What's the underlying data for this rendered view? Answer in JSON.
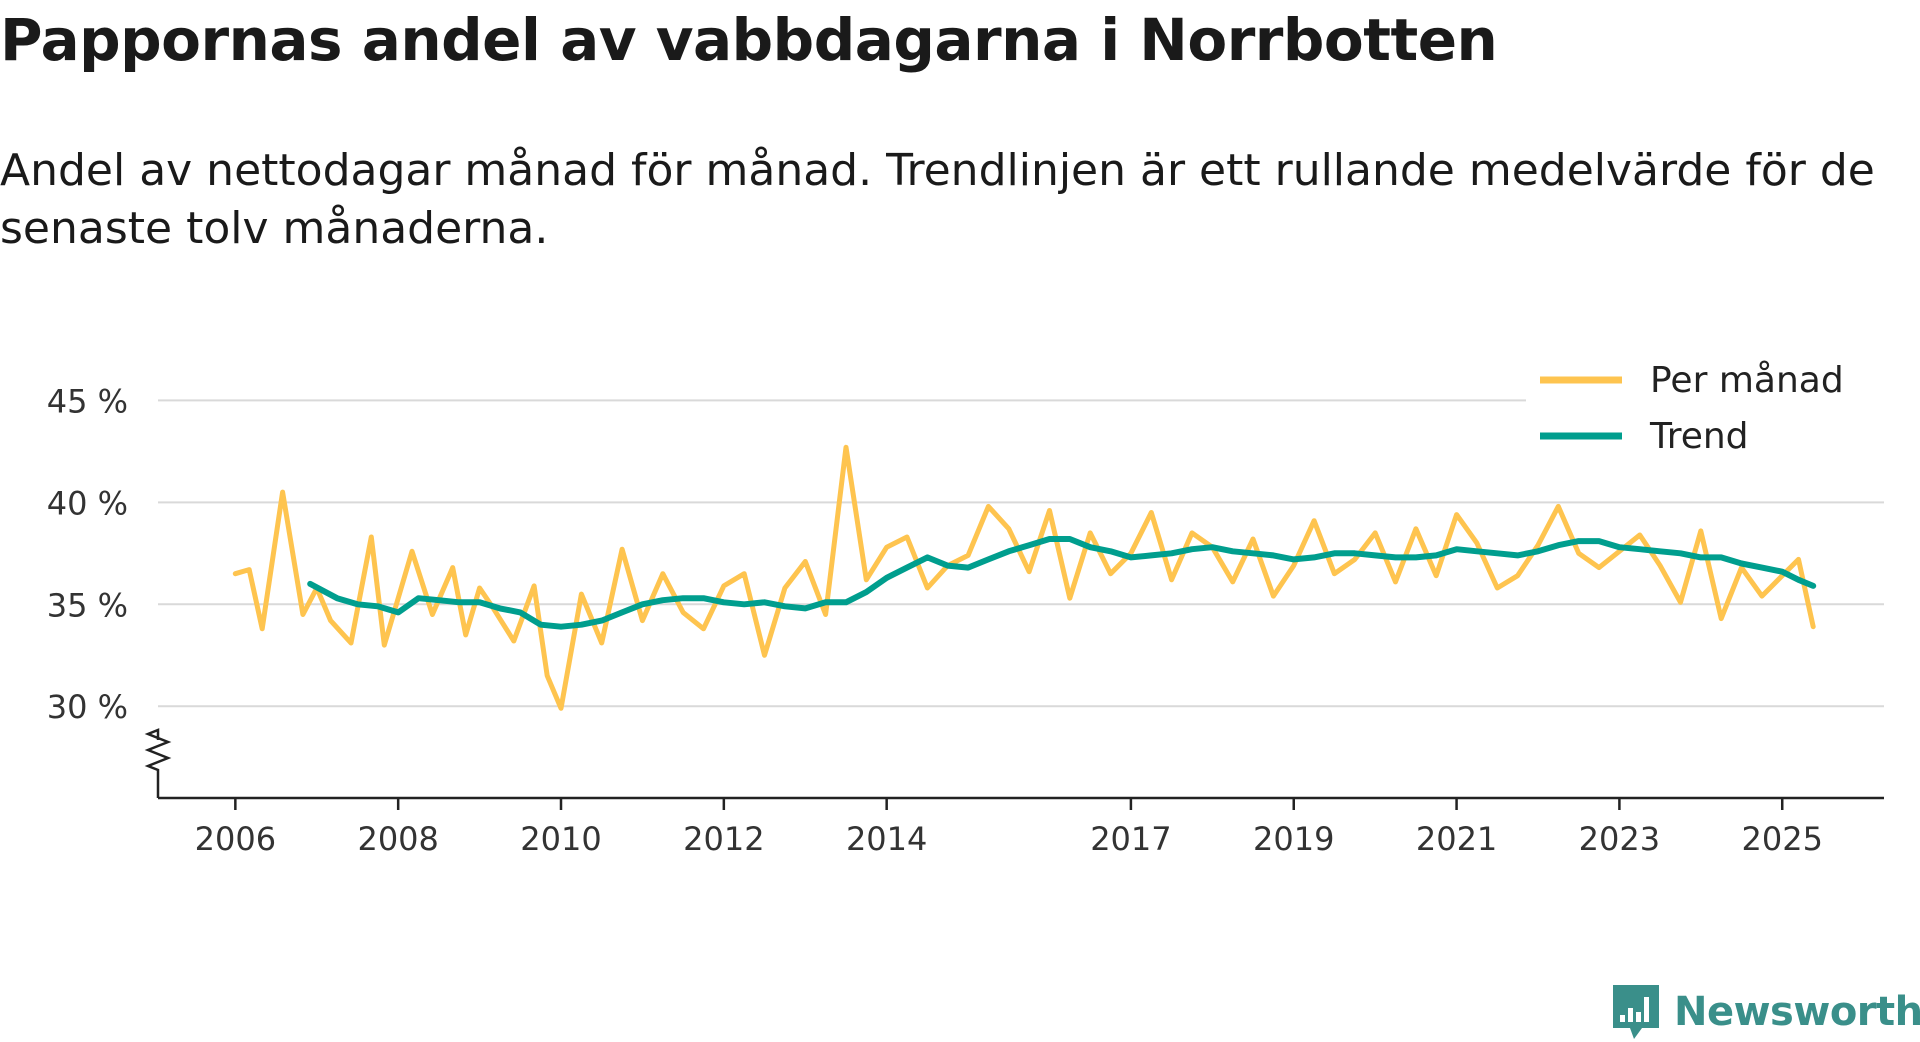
{
  "header": {
    "title": "Pappornas andel av vabbdagarna i Norrbotten",
    "subtitle": "Andel av nettodagar månad för månad. Trendlinjen är ett rullande medelvärde för de senaste tolv månaderna."
  },
  "brand": {
    "name": "Newsworthy",
    "logo_icon": "newsworthy-bar-chart-logo-icon",
    "color": "#3a8f8a"
  },
  "chart_data": {
    "type": "line",
    "title": "Pappornas andel av vabbdagarna i Norrbotten",
    "xlabel": "",
    "ylabel": "",
    "ylim": [
      25.5,
      46
    ],
    "y_ticks": [
      30,
      35,
      40,
      45
    ],
    "y_tick_labels": [
      "30 %",
      "35 %",
      "40 %",
      "45 %"
    ],
    "y_axis_break": true,
    "grid": true,
    "legend_position": "top-right",
    "xlim": [
      2005.05,
      2026.25
    ],
    "x_ticks": [
      2006,
      2008,
      2010,
      2012,
      2014,
      2017,
      2019,
      2021,
      2023,
      2025
    ],
    "x_tick_labels": [
      "2006",
      "2008",
      "2010",
      "2012",
      "2014",
      "2017",
      "2019",
      "2021",
      "2023",
      "2025"
    ],
    "series": [
      {
        "name": "Per månad",
        "color": "#fec44f",
        "x": [
          2006.0,
          2006.17,
          2006.33,
          2006.58,
          2006.83,
          2007.0,
          2007.17,
          2007.42,
          2007.67,
          2007.83,
          2008.0,
          2008.17,
          2008.42,
          2008.67,
          2008.83,
          2009.0,
          2009.17,
          2009.42,
          2009.67,
          2009.83,
          2010.0,
          2010.25,
          2010.5,
          2010.75,
          2011.0,
          2011.25,
          2011.5,
          2011.75,
          2012.0,
          2012.25,
          2012.5,
          2012.75,
          2013.0,
          2013.25,
          2013.5,
          2013.75,
          2014.0,
          2014.25,
          2014.5,
          2014.75,
          2015.0,
          2015.25,
          2015.5,
          2015.75,
          2016.0,
          2016.25,
          2016.5,
          2016.75,
          2017.0,
          2017.25,
          2017.5,
          2017.75,
          2018.0,
          2018.25,
          2018.5,
          2018.75,
          2019.0,
          2019.25,
          2019.5,
          2019.75,
          2020.0,
          2020.25,
          2020.5,
          2020.75,
          2021.0,
          2021.25,
          2021.5,
          2021.75,
          2022.0,
          2022.25,
          2022.5,
          2022.75,
          2023.0,
          2023.25,
          2023.5,
          2023.75,
          2024.0,
          2024.25,
          2024.5,
          2024.75,
          2025.0,
          2025.2,
          2025.38
        ],
        "values": [
          36.5,
          36.7,
          33.8,
          40.5,
          34.5,
          35.8,
          34.2,
          33.1,
          38.3,
          33.0,
          35.3,
          37.6,
          34.5,
          36.8,
          33.5,
          35.8,
          34.8,
          33.2,
          35.9,
          31.5,
          29.9,
          35.5,
          33.1,
          37.7,
          34.2,
          36.5,
          34.6,
          33.8,
          35.9,
          36.5,
          32.5,
          35.8,
          37.1,
          34.5,
          42.7,
          36.2,
          37.8,
          38.3,
          35.8,
          36.9,
          37.4,
          39.8,
          38.7,
          36.6,
          39.6,
          35.3,
          38.5,
          36.5,
          37.5,
          39.5,
          36.2,
          38.5,
          37.8,
          36.1,
          38.2,
          35.4,
          36.9,
          39.1,
          36.5,
          37.2,
          38.5,
          36.1,
          38.7,
          36.4,
          39.4,
          38.0,
          35.8,
          36.4,
          37.9,
          39.8,
          37.5,
          36.8,
          37.6,
          38.4,
          36.9,
          35.1,
          38.6,
          34.3,
          36.8,
          35.4,
          36.4,
          37.2,
          33.9
        ]
      },
      {
        "name": "Trend",
        "color": "#009e8e",
        "x": [
          2006.92,
          2007.25,
          2007.5,
          2007.75,
          2008.0,
          2008.25,
          2008.5,
          2008.75,
          2009.0,
          2009.25,
          2009.5,
          2009.75,
          2010.0,
          2010.25,
          2010.5,
          2010.75,
          2011.0,
          2011.25,
          2011.5,
          2011.75,
          2012.0,
          2012.25,
          2012.5,
          2012.75,
          2013.0,
          2013.25,
          2013.5,
          2013.75,
          2014.0,
          2014.25,
          2014.5,
          2014.75,
          2015.0,
          2015.25,
          2015.5,
          2015.75,
          2016.0,
          2016.25,
          2016.5,
          2016.75,
          2017.0,
          2017.25,
          2017.5,
          2017.75,
          2018.0,
          2018.25,
          2018.5,
          2018.75,
          2019.0,
          2019.25,
          2019.5,
          2019.75,
          2020.0,
          2020.25,
          2020.5,
          2020.75,
          2021.0,
          2021.25,
          2021.5,
          2021.75,
          2022.0,
          2022.25,
          2022.5,
          2022.75,
          2023.0,
          2023.25,
          2023.5,
          2023.75,
          2024.0,
          2024.25,
          2024.5,
          2024.75,
          2025.0,
          2025.2,
          2025.38
        ],
        "values": [
          36.0,
          35.3,
          35.0,
          34.9,
          34.6,
          35.3,
          35.2,
          35.1,
          35.1,
          34.8,
          34.6,
          34.0,
          33.9,
          34.0,
          34.2,
          34.6,
          35.0,
          35.2,
          35.3,
          35.3,
          35.1,
          35.0,
          35.1,
          34.9,
          34.8,
          35.1,
          35.1,
          35.6,
          36.3,
          36.8,
          37.3,
          36.9,
          36.8,
          37.2,
          37.6,
          37.9,
          38.2,
          38.2,
          37.8,
          37.6,
          37.3,
          37.4,
          37.5,
          37.7,
          37.8,
          37.6,
          37.5,
          37.4,
          37.2,
          37.3,
          37.5,
          37.5,
          37.4,
          37.3,
          37.3,
          37.4,
          37.7,
          37.6,
          37.5,
          37.4,
          37.6,
          37.9,
          38.1,
          38.1,
          37.8,
          37.7,
          37.6,
          37.5,
          37.3,
          37.3,
          37.0,
          36.8,
          36.6,
          36.2,
          35.9
        ]
      }
    ]
  }
}
